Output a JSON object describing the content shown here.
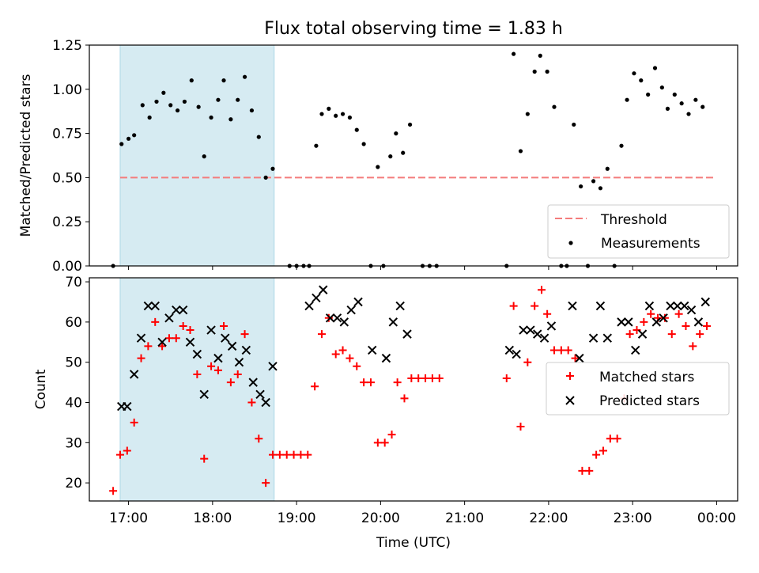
{
  "title": "Flux total observing time = 1.83 h",
  "chart_data": [
    {
      "type": "scatter",
      "panel": "top",
      "ylabel": "Matched/Predicted stars",
      "ylim": [
        0,
        1.25
      ],
      "yticks": [
        0.0,
        0.25,
        0.5,
        0.75,
        1.0,
        1.25
      ],
      "ytick_labels": [
        "0.00",
        "0.25",
        "0.50",
        "0.75",
        "1.00",
        "1.25"
      ],
      "xlim": [
        "16:32",
        "00:15"
      ],
      "xticks": [
        "17:00",
        "18:00",
        "19:00",
        "20:00",
        "21:00",
        "22:00",
        "23:00",
        "00:00"
      ],
      "xtick_labels": [
        "",
        "",
        "",
        "",
        "",
        "",
        "",
        ""
      ],
      "threshold": {
        "name": "Threshold",
        "y": 0.5,
        "x_range": [
          "16:54",
          "23:59"
        ],
        "color": "#f47c7c",
        "style": "dashed"
      },
      "highlight_span": {
        "x_range": [
          "16:54",
          "18:44"
        ],
        "color": "#add8e6"
      },
      "legend": {
        "placement": "lower-right",
        "entries": [
          "Threshold",
          "Measurements"
        ]
      },
      "series": [
        {
          "name": "Measurements",
          "color": "#000000",
          "marker": "dot",
          "points": [
            [
              "16:49",
              0.0
            ],
            [
              "16:55",
              0.69
            ],
            [
              "17:00",
              0.72
            ],
            [
              "17:04",
              0.74
            ],
            [
              "17:10",
              0.91
            ],
            [
              "17:15",
              0.84
            ],
            [
              "17:20",
              0.93
            ],
            [
              "17:25",
              0.98
            ],
            [
              "17:30",
              0.91
            ],
            [
              "17:35",
              0.88
            ],
            [
              "17:40",
              0.93
            ],
            [
              "17:45",
              1.05
            ],
            [
              "17:50",
              0.9
            ],
            [
              "17:54",
              0.62
            ],
            [
              "17:59",
              0.84
            ],
            [
              "18:04",
              0.94
            ],
            [
              "18:08",
              1.05
            ],
            [
              "18:13",
              0.83
            ],
            [
              "18:18",
              0.94
            ],
            [
              "18:23",
              1.07
            ],
            [
              "18:28",
              0.88
            ],
            [
              "18:33",
              0.73
            ],
            [
              "18:38",
              0.5
            ],
            [
              "18:43",
              0.55
            ],
            [
              "18:55",
              0.0
            ],
            [
              "19:00",
              0.0
            ],
            [
              "19:05",
              0.0
            ],
            [
              "19:09",
              0.0
            ],
            [
              "19:14",
              0.68
            ],
            [
              "19:18",
              0.86
            ],
            [
              "19:23",
              0.89
            ],
            [
              "19:28",
              0.85
            ],
            [
              "19:33",
              0.86
            ],
            [
              "19:38",
              0.84
            ],
            [
              "19:43",
              0.77
            ],
            [
              "19:48",
              0.69
            ],
            [
              "19:53",
              0.0
            ],
            [
              "19:58",
              0.56
            ],
            [
              "20:02",
              0.0
            ],
            [
              "20:07",
              0.62
            ],
            [
              "20:11",
              0.75
            ],
            [
              "20:16",
              0.64
            ],
            [
              "20:21",
              0.8
            ],
            [
              "20:30",
              0.0
            ],
            [
              "20:35",
              0.0
            ],
            [
              "20:40",
              0.0
            ],
            [
              "21:30",
              0.0
            ],
            [
              "21:35",
              1.2
            ],
            [
              "21:40",
              0.65
            ],
            [
              "21:45",
              0.86
            ],
            [
              "21:50",
              1.1
            ],
            [
              "21:54",
              1.19
            ],
            [
              "21:59",
              1.1
            ],
            [
              "22:04",
              0.9
            ],
            [
              "22:09",
              0.0
            ],
            [
              "22:13",
              0.0
            ],
            [
              "22:18",
              0.8
            ],
            [
              "22:23",
              0.45
            ],
            [
              "22:28",
              0.0
            ],
            [
              "22:32",
              0.48
            ],
            [
              "22:37",
              0.44
            ],
            [
              "22:42",
              0.55
            ],
            [
              "22:47",
              0.0
            ],
            [
              "22:52",
              0.68
            ],
            [
              "22:56",
              0.94
            ],
            [
              "23:01",
              1.09
            ],
            [
              "23:06",
              1.05
            ],
            [
              "23:11",
              0.97
            ],
            [
              "23:16",
              1.12
            ],
            [
              "23:21",
              1.01
            ],
            [
              "23:25",
              0.89
            ],
            [
              "23:30",
              0.97
            ],
            [
              "23:35",
              0.92
            ],
            [
              "23:40",
              0.86
            ],
            [
              "23:45",
              0.94
            ],
            [
              "23:50",
              0.9
            ]
          ]
        }
      ]
    },
    {
      "type": "scatter",
      "panel": "bottom",
      "ylabel": "Count",
      "xlabel": "Time (UTC)",
      "ylim": [
        15.5,
        71
      ],
      "yticks": [
        20,
        30,
        40,
        50,
        60,
        70
      ],
      "ytick_labels": [
        "20",
        "30",
        "40",
        "50",
        "60",
        "70"
      ],
      "xlim": [
        "16:32",
        "00:15"
      ],
      "xticks": [
        "17:00",
        "18:00",
        "19:00",
        "20:00",
        "21:00",
        "22:00",
        "23:00",
        "00:00"
      ],
      "xtick_labels": [
        "17:00",
        "18:00",
        "19:00",
        "20:00",
        "21:00",
        "22:00",
        "23:00",
        "00:00"
      ],
      "highlight_span": {
        "x_range": [
          "16:54",
          "18:44"
        ],
        "color": "#add8e6"
      },
      "legend": {
        "placement": "right",
        "entries": [
          "Matched stars",
          "Predicted stars"
        ]
      },
      "series": [
        {
          "name": "Matched stars",
          "color": "#ff0000",
          "marker": "plus",
          "points": [
            [
              "16:49",
              18
            ],
            [
              "16:54",
              27
            ],
            [
              "16:59",
              28
            ],
            [
              "17:04",
              35
            ],
            [
              "17:09",
              51
            ],
            [
              "17:14",
              54
            ],
            [
              "17:19",
              60
            ],
            [
              "17:24",
              54
            ],
            [
              "17:29",
              56
            ],
            [
              "17:34",
              56
            ],
            [
              "17:39",
              59
            ],
            [
              "17:44",
              58
            ],
            [
              "17:49",
              47
            ],
            [
              "17:54",
              26
            ],
            [
              "17:59",
              49
            ],
            [
              "18:04",
              48
            ],
            [
              "18:08",
              59
            ],
            [
              "18:13",
              45
            ],
            [
              "18:18",
              47
            ],
            [
              "18:23",
              57
            ],
            [
              "18:28",
              40
            ],
            [
              "18:33",
              31
            ],
            [
              "18:38",
              20
            ],
            [
              "18:43",
              27
            ],
            [
              "18:48",
              27
            ],
            [
              "18:53",
              27
            ],
            [
              "18:58",
              27
            ],
            [
              "19:03",
              27
            ],
            [
              "19:08",
              27
            ],
            [
              "19:13",
              44
            ],
            [
              "19:18",
              57
            ],
            [
              "19:23",
              61
            ],
            [
              "19:28",
              52
            ],
            [
              "19:33",
              53
            ],
            [
              "19:38",
              51
            ],
            [
              "19:43",
              49
            ],
            [
              "19:48",
              45
            ],
            [
              "19:53",
              45
            ],
            [
              "19:58",
              30
            ],
            [
              "20:03",
              30
            ],
            [
              "20:08",
              32
            ],
            [
              "20:12",
              45
            ],
            [
              "20:17",
              41
            ],
            [
              "20:22",
              46
            ],
            [
              "20:27",
              46
            ],
            [
              "20:32",
              46
            ],
            [
              "20:37",
              46
            ],
            [
              "20:42",
              46
            ],
            [
              "21:30",
              46
            ],
            [
              "21:35",
              64
            ],
            [
              "21:40",
              34
            ],
            [
              "21:45",
              50
            ],
            [
              "21:50",
              64
            ],
            [
              "21:55",
              68
            ],
            [
              "21:59",
              62
            ],
            [
              "22:04",
              53
            ],
            [
              "22:09",
              53
            ],
            [
              "22:14",
              53
            ],
            [
              "22:19",
              51
            ],
            [
              "22:24",
              23
            ],
            [
              "22:29",
              23
            ],
            [
              "22:34",
              27
            ],
            [
              "22:39",
              28
            ],
            [
              "22:44",
              31
            ],
            [
              "22:49",
              31
            ],
            [
              "22:54",
              41
            ],
            [
              "22:58",
              57
            ],
            [
              "23:03",
              58
            ],
            [
              "23:08",
              60
            ],
            [
              "23:13",
              62
            ],
            [
              "23:18",
              61
            ],
            [
              "23:23",
              61
            ],
            [
              "23:28",
              57
            ],
            [
              "23:33",
              62
            ],
            [
              "23:38",
              59
            ],
            [
              "23:43",
              54
            ],
            [
              "23:48",
              57
            ],
            [
              "23:53",
              59
            ]
          ]
        },
        {
          "name": "Predicted stars",
          "color": "#000000",
          "marker": "x",
          "points": [
            [
              "16:55",
              39
            ],
            [
              "16:59",
              39
            ],
            [
              "17:04",
              47
            ],
            [
              "17:09",
              56
            ],
            [
              "17:14",
              64
            ],
            [
              "17:19",
              64
            ],
            [
              "17:24",
              55
            ],
            [
              "17:29",
              61
            ],
            [
              "17:34",
              63
            ],
            [
              "17:39",
              63
            ],
            [
              "17:44",
              55
            ],
            [
              "17:49",
              52
            ],
            [
              "17:54",
              42
            ],
            [
              "17:59",
              58
            ],
            [
              "18:04",
              51
            ],
            [
              "18:09",
              56
            ],
            [
              "18:14",
              54
            ],
            [
              "18:19",
              50
            ],
            [
              "18:24",
              53
            ],
            [
              "18:29",
              45
            ],
            [
              "18:34",
              42
            ],
            [
              "18:38",
              40
            ],
            [
              "18:43",
              49
            ],
            [
              "19:09",
              64
            ],
            [
              "19:14",
              66
            ],
            [
              "19:19",
              68
            ],
            [
              "19:24",
              61
            ],
            [
              "19:29",
              61
            ],
            [
              "19:34",
              60
            ],
            [
              "19:39",
              63
            ],
            [
              "19:44",
              65
            ],
            [
              "19:54",
              53
            ],
            [
              "20:04",
              51
            ],
            [
              "20:09",
              60
            ],
            [
              "20:14",
              64
            ],
            [
              "20:19",
              57
            ],
            [
              "21:32",
              53
            ],
            [
              "21:37",
              52
            ],
            [
              "21:42",
              58
            ],
            [
              "21:47",
              58
            ],
            [
              "21:52",
              57
            ],
            [
              "21:57",
              56
            ],
            [
              "22:02",
              59
            ],
            [
              "22:17",
              64
            ],
            [
              "22:22",
              51
            ],
            [
              "22:32",
              56
            ],
            [
              "22:37",
              64
            ],
            [
              "22:42",
              56
            ],
            [
              "22:52",
              60
            ],
            [
              "22:57",
              60
            ],
            [
              "23:02",
              53
            ],
            [
              "23:07",
              57
            ],
            [
              "23:12",
              64
            ],
            [
              "23:17",
              60
            ],
            [
              "23:22",
              61
            ],
            [
              "23:27",
              64
            ],
            [
              "23:32",
              64
            ],
            [
              "23:37",
              64
            ],
            [
              "23:42",
              63
            ],
            [
              "23:47",
              60
            ],
            [
              "23:52",
              65
            ]
          ]
        }
      ]
    }
  ]
}
